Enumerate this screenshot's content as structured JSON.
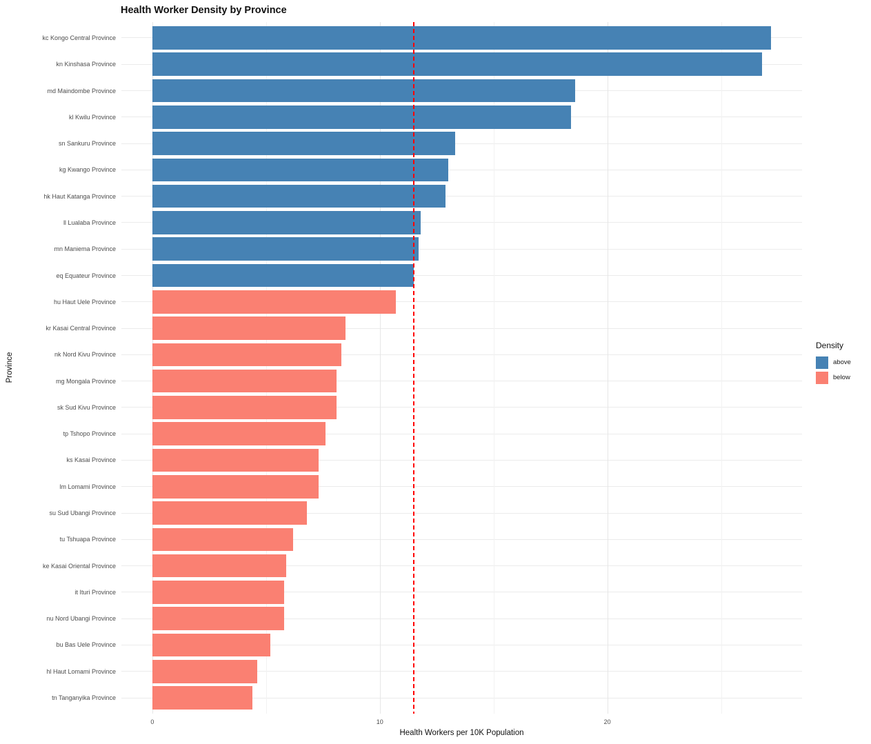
{
  "title": "Health Worker Density by Province",
  "colors": {
    "above": "#4682B4",
    "below": "#FA8072",
    "reference_line": "#FF0000",
    "gridline_major": "#e6e6e6",
    "gridline_minor": "#f2f2f2",
    "axis_text": "#4d4d4d"
  },
  "legend": {
    "title": "Density",
    "position": "right",
    "items": [
      {
        "label": "above",
        "color_key": "above"
      },
      {
        "label": "below",
        "color_key": "below"
      }
    ]
  },
  "axes": {
    "xlabel": "Health Workers per 10K Population",
    "ylabel": "Province",
    "x_tick_labels": [
      "0",
      "10",
      "20"
    ]
  },
  "chart_data": {
    "type": "bar",
    "orientation": "horizontal",
    "title": "Health Worker Density by Province",
    "xlabel": "Health Workers per 10K Population",
    "ylabel": "Province",
    "xlim": [
      -1.36,
      28.56
    ],
    "x_major_ticks": [
      0,
      10,
      20
    ],
    "x_minor_gridlines": [
      5,
      15,
      25
    ],
    "grid": true,
    "legend_position": "right",
    "reference_line_x": 11.5,
    "categories": [
      "kc Kongo Central Province",
      "kn Kinshasa Province",
      "md Maindombe Province",
      "kl Kwilu Province",
      "sn Sankuru Province",
      "kg Kwango Province",
      "hk Haut Katanga Province",
      "ll Lualaba Province",
      "mn Maniema Province",
      "eq Equateur Province",
      "hu Haut Uele Province",
      "kr Kasai Central Province",
      "nk Nord Kivu Province",
      "mg Mongala Province",
      "sk Sud Kivu Province",
      "tp Tshopo Province",
      "ks Kasai Province",
      "lm Lomami Province",
      "su Sud Ubangi Province",
      "tu Tshuapa Province",
      "ke Kasai Oriental Province",
      "it Ituri Province",
      "nu Nord Ubangi Province",
      "bu Bas Uele Province",
      "hl Haut Lomami Province",
      "tn Tanganyika Province"
    ],
    "values": [
      27.2,
      26.8,
      18.6,
      18.4,
      13.3,
      13.0,
      12.9,
      11.8,
      11.7,
      11.5,
      10.7,
      8.5,
      8.3,
      8.1,
      8.1,
      7.6,
      7.3,
      7.3,
      6.8,
      6.2,
      5.9,
      5.8,
      5.8,
      5.2,
      4.6,
      4.4
    ],
    "density_class": [
      "above",
      "above",
      "above",
      "above",
      "above",
      "above",
      "above",
      "above",
      "above",
      "above",
      "below",
      "below",
      "below",
      "below",
      "below",
      "below",
      "below",
      "below",
      "below",
      "below",
      "below",
      "below",
      "below",
      "below",
      "below",
      "below"
    ]
  }
}
